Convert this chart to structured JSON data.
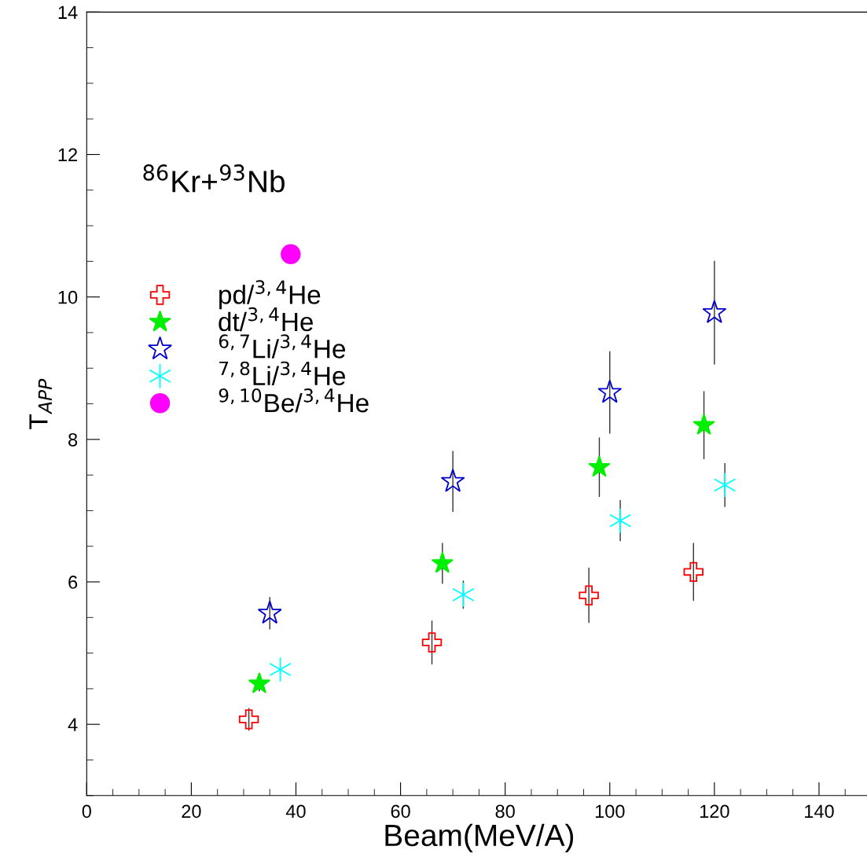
{
  "chart_data": {
    "type": "scatter",
    "xlabel": "Beam(MeV/A)",
    "ylabel": "T$_{APP}$",
    "annotations": [
      "$^{86}$Kr+$^{93}$Nb"
    ],
    "xlim": [
      0,
      150
    ],
    "xticks": [
      0,
      20,
      40,
      60,
      80,
      100,
      120,
      140
    ],
    "ylim": [
      3,
      14
    ],
    "yticks": [
      4,
      6,
      8,
      10,
      12,
      14
    ],
    "grid": false,
    "legend": "left",
    "series": [
      {
        "name": "pd/$^{3,4}$He",
        "color": "#ff0000",
        "marker": "cross-open",
        "x": [
          31,
          66,
          96,
          116
        ],
        "values": [
          4.07,
          5.15,
          5.81,
          6.14
        ],
        "errors": [
          0.15,
          0.3,
          0.38,
          0.4
        ]
      },
      {
        "name": "dt/$^{3,4}$He",
        "color": "#00ee00",
        "marker": "star",
        "x": [
          33,
          68,
          98,
          118
        ],
        "values": [
          4.57,
          6.26,
          7.61,
          8.2
        ],
        "errors": [
          0.1,
          0.28,
          0.41,
          0.47
        ]
      },
      {
        "name": "$^{6,7}$Li/$^{3,4}$He",
        "color": "#0000cc",
        "marker": "star-open",
        "x": [
          35,
          70,
          100,
          120
        ],
        "values": [
          5.56,
          7.41,
          8.66,
          9.78
        ],
        "errors": [
          0.22,
          0.42,
          0.57,
          0.72
        ]
      },
      {
        "name": "$^{7,8}$Li/$^{3,4}$He",
        "color": "#00ffff",
        "marker": "cross",
        "x": [
          37,
          72,
          102,
          122
        ],
        "values": [
          4.77,
          5.82,
          6.86,
          7.36
        ],
        "errors": [
          null,
          0.19,
          0.28,
          0.3
        ]
      },
      {
        "name": "$^{9,10}$Be/$^{3,4}$He",
        "color": "#ff00ff",
        "marker": "circle",
        "x": [
          39
        ],
        "values": [
          10.6
        ],
        "errors": [
          null
        ]
      }
    ]
  }
}
